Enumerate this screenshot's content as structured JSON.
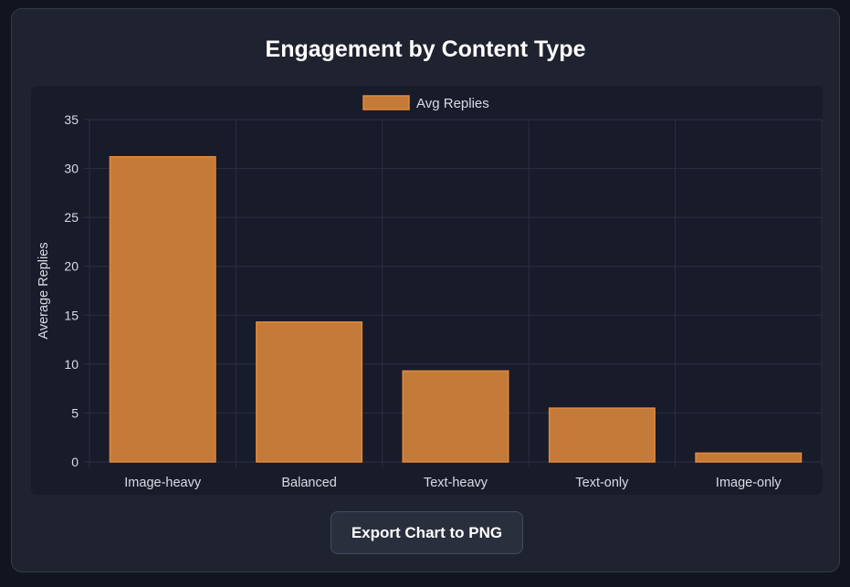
{
  "card": {
    "title": "Engagement by Content Type",
    "export_label": "Export Chart to PNG"
  },
  "colors": {
    "bar_fill": "#c47a38",
    "bar_stroke": "#e08a3c",
    "grid": "#2a2f40",
    "text": "#d9dce3"
  },
  "chart_data": {
    "type": "bar",
    "title": "Engagement by Content Type",
    "categories": [
      "Image-heavy",
      "Balanced",
      "Text-heavy",
      "Text-only",
      "Image-only"
    ],
    "series": [
      {
        "name": "Avg Replies",
        "values": [
          31.2,
          14.3,
          9.3,
          5.5,
          0.9
        ]
      }
    ],
    "xlabel": "",
    "ylabel": "Average Replies",
    "ylim": [
      0,
      35
    ],
    "yticks": [
      0,
      5,
      10,
      15,
      20,
      25,
      30,
      35
    ],
    "grid": true,
    "legend": "top-center"
  }
}
